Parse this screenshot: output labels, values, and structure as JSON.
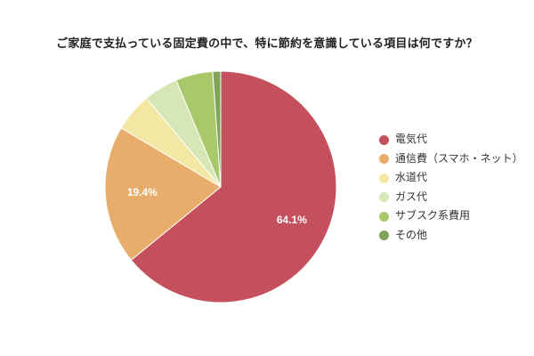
{
  "title": "ご家庭で支払っている固定費の中で、特に節約を意識している項目は何ですか？",
  "chart_data": {
    "type": "pie",
    "title": "ご家庭で支払っている固定費の中で、特に節約を意識している項目は何ですか？",
    "categories": [
      "電気代",
      "通信費（スマホ・ネット）",
      "水道代",
      "ガス代",
      "サブスク系費用",
      "その他"
    ],
    "values": [
      64.1,
      19.4,
      5.4,
      4.8,
      5.2,
      1.1
    ],
    "value_labels": [
      "64.1%",
      "19.4%",
      "",
      "",
      "",
      ""
    ],
    "colors": [
      "#c5505d",
      "#e8ad6a",
      "#f2e7a3",
      "#d6e6b4",
      "#a9c86a",
      "#7ea45a"
    ],
    "start_angle_deg": 0,
    "direction": "clockwise",
    "legend_position": "right"
  },
  "legend": {
    "items": [
      {
        "label": "電気代",
        "color": "#c5505d"
      },
      {
        "label": "通信費（スマホ・ネット）",
        "color": "#e8ad6a"
      },
      {
        "label": "水道代",
        "color": "#f2e7a3"
      },
      {
        "label": "ガス代",
        "color": "#d6e6b4"
      },
      {
        "label": "サブスク系費用",
        "color": "#a9c86a"
      },
      {
        "label": "その他",
        "color": "#7ea45a"
      }
    ]
  }
}
